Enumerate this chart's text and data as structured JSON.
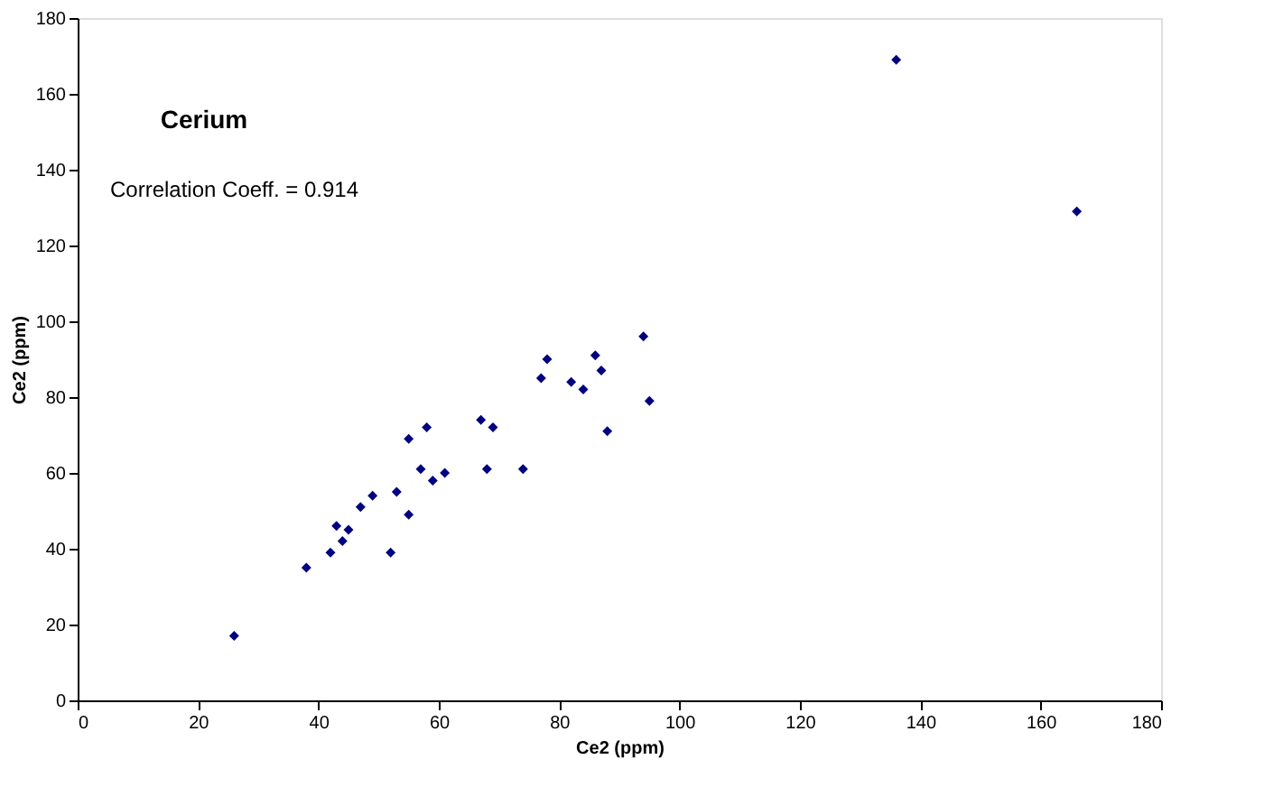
{
  "chart_data": {
    "type": "scatter",
    "title": "Cerium",
    "xlabel": "Ce2 (ppm)",
    "ylabel": "Ce2 (ppm)",
    "annotations": [
      "Correlation Coeff. = 0.914"
    ],
    "x": [
      26,
      38,
      42,
      43,
      44,
      45,
      47,
      49,
      52,
      53,
      55,
      55,
      57,
      58,
      59,
      61,
      67,
      68,
      69,
      74,
      77,
      78,
      82,
      84,
      86,
      87,
      88,
      94,
      95,
      136,
      166
    ],
    "series": [
      {
        "color": "#000080",
        "values": [
          17,
          35,
          39,
          46,
          42,
          45,
          51,
          54,
          39,
          55,
          49,
          69,
          61,
          72,
          58,
          60,
          74,
          61,
          72,
          61,
          85,
          90,
          84,
          82,
          91,
          87,
          71,
          96,
          79,
          169,
          129
        ]
      }
    ],
    "xlim": [
      0,
      180
    ],
    "xticks": [
      0,
      20,
      40,
      60,
      80,
      100,
      120,
      140,
      160,
      180
    ],
    "ylim": [
      0,
      180
    ],
    "yticks": [
      0,
      20,
      40,
      60,
      80,
      100,
      120,
      140,
      160,
      180
    ],
    "grid": false,
    "marker": "diamond"
  }
}
